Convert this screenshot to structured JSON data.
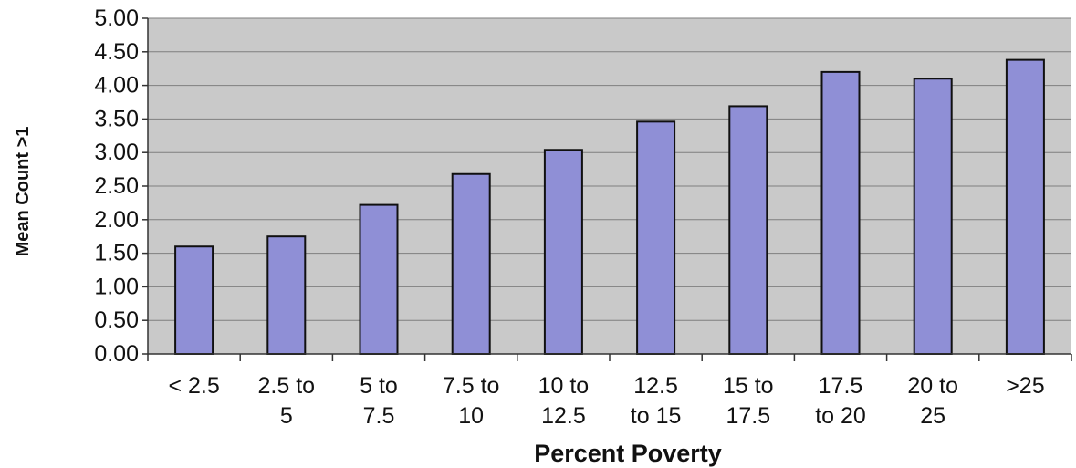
{
  "chart_data": {
    "type": "bar",
    "title": "",
    "xlabel": "Percent Poverty",
    "ylabel": "Mean Count >1",
    "categories": [
      "< 2.5",
      "2.5 to 5",
      "5 to 7.5",
      "7.5 to 10",
      "10 to 12.5",
      "12.5 to 15",
      "15 to 17.5",
      "17.5 to 20",
      "20 to 25",
      ">25"
    ],
    "category_lines": [
      [
        "< 2.5"
      ],
      [
        "2.5 to",
        "5"
      ],
      [
        "5 to",
        "7.5"
      ],
      [
        "7.5 to",
        "10"
      ],
      [
        "10 to",
        "12.5"
      ],
      [
        "12.5",
        "to 15"
      ],
      [
        "15 to",
        "17.5"
      ],
      [
        "17.5",
        "to 20"
      ],
      [
        "20 to",
        "25"
      ],
      [
        ">25"
      ]
    ],
    "values": [
      1.6,
      1.75,
      2.22,
      2.68,
      3.04,
      3.46,
      3.69,
      4.2,
      4.1,
      4.38
    ],
    "ylim": [
      0,
      5
    ],
    "yticks": [
      "0.00",
      "0.50",
      "1.00",
      "1.50",
      "2.00",
      "2.50",
      "3.00",
      "3.50",
      "4.00",
      "4.50",
      "5.00"
    ],
    "grid": true,
    "legend": "none",
    "colors": {
      "bar": "#8f8fd6",
      "bar_edge": "#101010",
      "plot_bg": "#c9c9c9",
      "grid": "#7f7f7f",
      "axis": "#333333"
    }
  }
}
